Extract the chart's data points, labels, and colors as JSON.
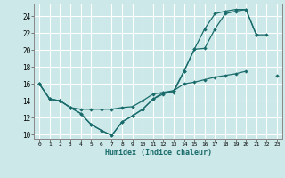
{
  "xlabel": "Humidex (Indice chaleur)",
  "bg_color": "#cce8e8",
  "grid_color": "#ffffff",
  "line_color": "#1a6b6b",
  "xlim": [
    -0.5,
    23.5
  ],
  "ylim": [
    9.5,
    25.5
  ],
  "xticks": [
    0,
    1,
    2,
    3,
    4,
    5,
    6,
    7,
    8,
    9,
    10,
    11,
    12,
    13,
    14,
    15,
    16,
    17,
    18,
    19,
    20,
    21,
    22,
    23
  ],
  "yticks": [
    10,
    12,
    14,
    16,
    18,
    20,
    22,
    24
  ],
  "line1_y": [
    16.0,
    14.2,
    14.0,
    13.2,
    12.5,
    11.2,
    10.5,
    9.9,
    11.5,
    12.2,
    13.0,
    14.2,
    14.8,
    15.2,
    17.5,
    20.1,
    20.2,
    22.5,
    24.3,
    24.6,
    24.8,
    21.8,
    null,
    null
  ],
  "line2_y": [
    16.0,
    14.2,
    14.0,
    13.2,
    13.0,
    13.0,
    13.0,
    13.0,
    13.2,
    13.3,
    14.0,
    14.8,
    15.0,
    15.2,
    16.0,
    16.2,
    16.5,
    16.8,
    17.0,
    17.2,
    17.5,
    null,
    null,
    17.0
  ],
  "line3_y": [
    16.0,
    14.2,
    14.0,
    13.2,
    12.5,
    11.2,
    10.5,
    9.9,
    11.5,
    12.2,
    13.0,
    14.2,
    15.0,
    15.0,
    17.5,
    20.1,
    22.5,
    24.3,
    24.6,
    24.8,
    24.8,
    21.8,
    21.8,
    null
  ]
}
